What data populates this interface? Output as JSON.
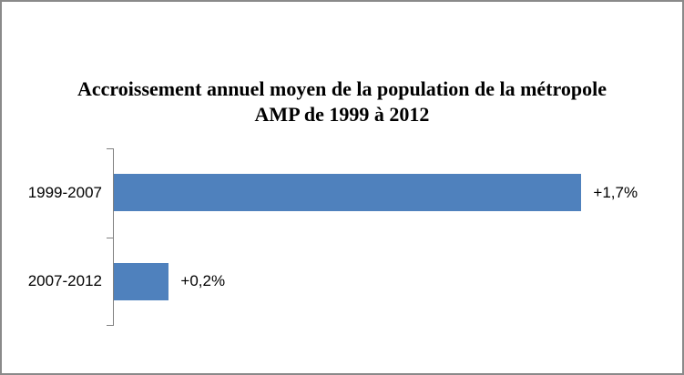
{
  "frame": {
    "background": "#ffffff",
    "border_color": "#8a8a8a"
  },
  "chart_data": {
    "type": "bar",
    "orientation": "horizontal",
    "title": "Accroissement annuel moyen de la population de la métropole AMP de 1999 à 2012",
    "categories": [
      "1999-2007",
      "2007-2012"
    ],
    "values": [
      1.7,
      0.2
    ],
    "value_labels": [
      "+1,7%",
      "+0,2%"
    ],
    "unit": "%",
    "xlabel": "",
    "ylabel": "",
    "xlim": [
      0,
      2
    ],
    "bar_color": "#4f81bd",
    "axis_color": "#808080",
    "grid": false,
    "legend": "none"
  }
}
